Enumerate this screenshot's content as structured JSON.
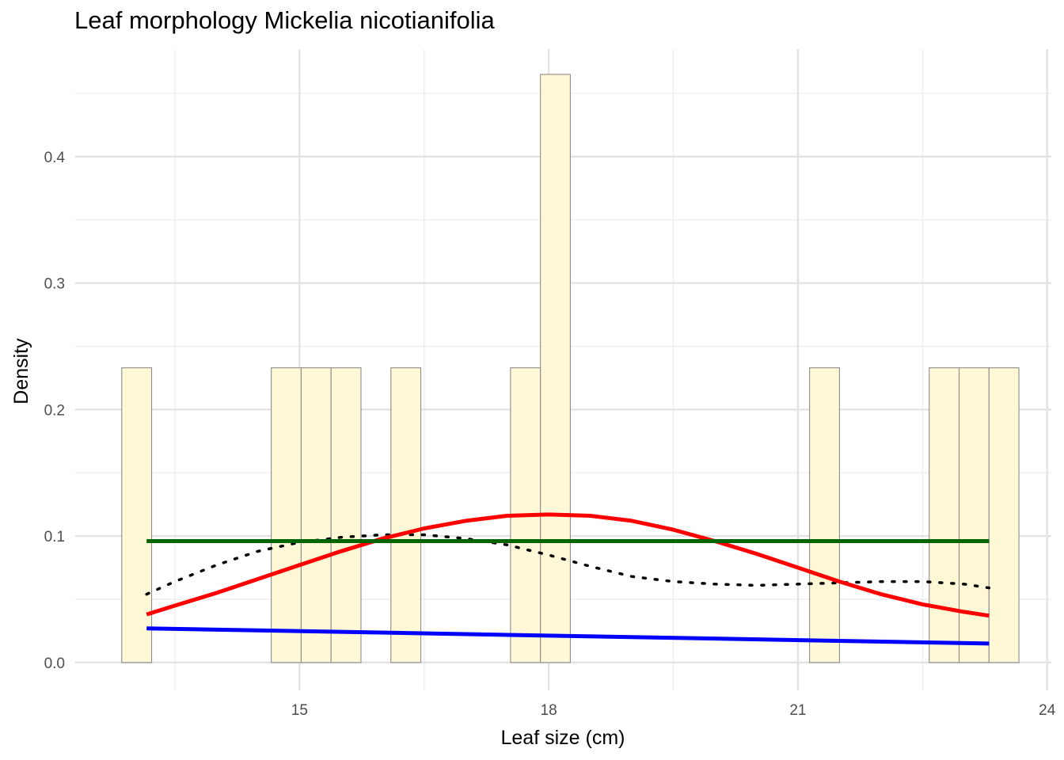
{
  "chart_data": {
    "type": "bar",
    "title": "Leaf morphology Mickelia nicotianifolia",
    "xlabel": "Leaf size (cm)",
    "ylabel": "Density",
    "xlim": [
      12.3,
      24.05
    ],
    "ylim": [
      -0.022,
      0.485
    ],
    "x_ticks": [
      15,
      18,
      21,
      24
    ],
    "y_ticks": [
      0.0,
      0.1,
      0.2,
      0.3,
      0.4
    ],
    "y_tick_labels": [
      "0.0",
      "0.1",
      "0.2",
      "0.3",
      "0.4"
    ],
    "grid": true,
    "bar_fill": "#FFF8D6",
    "bar_stroke": "#8c8c8c",
    "histogram": {
      "bin_width": 0.36,
      "bins": [
        {
          "x0": 12.86,
          "x1": 13.22,
          "density": 0.233
        },
        {
          "x0": 14.66,
          "x1": 15.02,
          "density": 0.233
        },
        {
          "x0": 15.02,
          "x1": 15.38,
          "density": 0.233
        },
        {
          "x0": 15.38,
          "x1": 15.74,
          "density": 0.233
        },
        {
          "x0": 16.1,
          "x1": 16.46,
          "density": 0.233
        },
        {
          "x0": 17.54,
          "x1": 17.9,
          "density": 0.233
        },
        {
          "x0": 17.9,
          "x1": 18.26,
          "density": 0.465
        },
        {
          "x0": 21.14,
          "x1": 21.5,
          "density": 0.233
        },
        {
          "x0": 22.58,
          "x1": 22.94,
          "density": 0.233
        },
        {
          "x0": 22.94,
          "x1": 23.3,
          "density": 0.233
        },
        {
          "x0": 23.3,
          "x1": 23.66,
          "density": 0.233
        }
      ]
    },
    "series": [
      {
        "style": "dotted",
        "color": "#000000",
        "x": [
          13.16,
          13.5,
          14.0,
          14.5,
          15.0,
          15.5,
          16.0,
          16.5,
          17.0,
          17.5,
          18.0,
          18.5,
          19.0,
          19.5,
          20.0,
          20.5,
          21.0,
          21.5,
          22.0,
          22.5,
          23.0,
          23.3
        ],
        "y": [
          0.054,
          0.064,
          0.077,
          0.088,
          0.095,
          0.099,
          0.101,
          0.101,
          0.098,
          0.093,
          0.085,
          0.076,
          0.068,
          0.064,
          0.062,
          0.061,
          0.062,
          0.063,
          0.064,
          0.064,
          0.062,
          0.059
        ]
      },
      {
        "style": "solid",
        "color": "#FF0000",
        "x": [
          13.16,
          13.5,
          14.0,
          14.5,
          15.0,
          15.5,
          16.0,
          16.5,
          17.0,
          17.5,
          18.0,
          18.5,
          19.0,
          19.5,
          20.0,
          20.5,
          21.0,
          21.5,
          22.0,
          22.5,
          23.0,
          23.3
        ],
        "y": [
          0.038,
          0.045,
          0.055,
          0.066,
          0.077,
          0.088,
          0.098,
          0.106,
          0.112,
          0.116,
          0.117,
          0.116,
          0.112,
          0.105,
          0.096,
          0.086,
          0.075,
          0.064,
          0.054,
          0.046,
          0.04,
          0.037
        ]
      },
      {
        "style": "solid",
        "color": "#0000FF",
        "x": [
          13.16,
          23.3
        ],
        "y": [
          0.027,
          0.015
        ]
      },
      {
        "style": "solid",
        "color": "#006400",
        "x": [
          13.16,
          23.3
        ],
        "y": [
          0.096,
          0.096
        ]
      }
    ]
  }
}
